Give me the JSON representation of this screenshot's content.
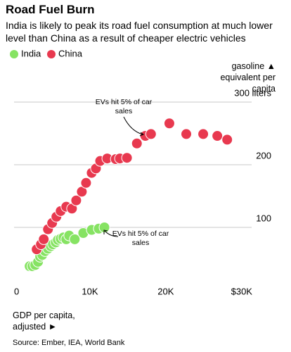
{
  "chart_data": {
    "type": "scatter",
    "title": "Road Fuel Burn",
    "subtitle": "India is likely to peak its road fuel consumption at much lower level than China as a result of cheaper electric vehicles",
    "x_label": "GDP per capita, adjusted ►",
    "y_label": "gasoline ▲ equivalent per capita",
    "source": "Source: Ember, IEA, World Bank",
    "annotations": [
      "EVs hit 5% of car sales",
      "EVs hit 5% of car sales"
    ],
    "xlim": [
      0,
      31500
    ],
    "ylim": [
      0,
      300
    ],
    "xticks": [
      0,
      {
        "value": 10000,
        "label": "10K"
      },
      {
        "value": 20000,
        "label": "20K"
      },
      {
        "value": 30000,
        "label": "$30K"
      }
    ],
    "yticks": [
      100,
      200,
      {
        "value": 300,
        "label": "300 liters"
      }
    ],
    "grid": true,
    "series": [
      {
        "name": "India",
        "color": "#86e363",
        "x": [
          2050,
          2420,
          2790,
          3160,
          3440,
          3720,
          4090,
          4470,
          4840,
          5120,
          5490,
          5770,
          6140,
          6510,
          6880,
          7260,
          8000,
          9120,
          10230,
          11160,
          11910
        ],
        "values": [
          38,
          38,
          40,
          45,
          53,
          56,
          62,
          66,
          70,
          73,
          76,
          80,
          82,
          84,
          81,
          87,
          81,
          91,
          96,
          98,
          100
        ]
      },
      {
        "name": "China",
        "color": "#e8394f",
        "x": [
          2980,
          3540,
          3910,
          4470,
          5020,
          5580,
          6140,
          6880,
          7630,
          8190,
          8930,
          9490,
          10230,
          10790,
          11350,
          12280,
          13400,
          13950,
          14880,
          16190,
          17300,
          18050,
          20470,
          22700,
          24930,
          26790,
          28090
        ],
        "values": [
          65,
          73,
          81,
          97,
          107,
          117,
          126,
          133,
          130,
          143,
          157,
          171,
          187,
          194,
          206,
          210,
          209,
          210,
          211,
          234,
          246,
          249,
          266,
          249,
          249,
          246,
          240
        ]
      }
    ]
  }
}
